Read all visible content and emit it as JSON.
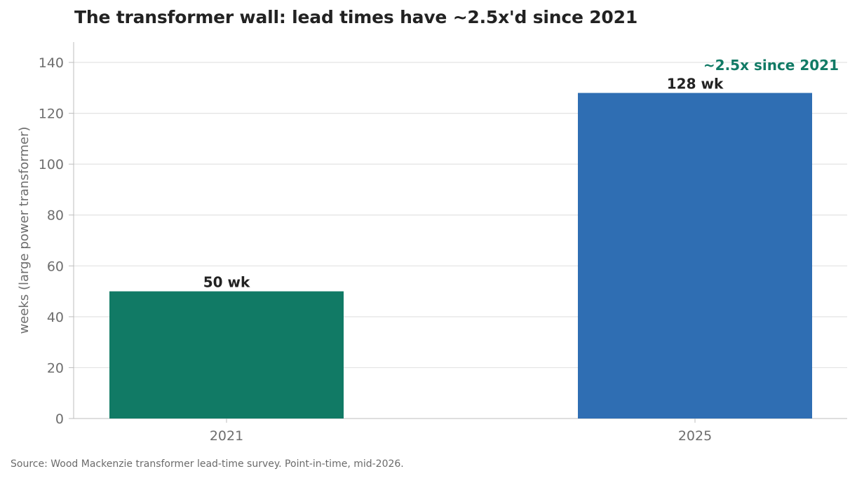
{
  "title": "The transformer wall: lead times have ~2.5x'd since 2021",
  "source": "Source: Wood Mackenzie transformer lead-time survey. Point-in-time, mid-2026.",
  "colors": {
    "bar_2021": "#117a65",
    "bar_2025": "#2f6eb3",
    "annotation": "#117a65",
    "grid": "#e3e3e3",
    "axis": "#bdbdbd"
  },
  "chart_data": {
    "type": "bar",
    "categories": [
      "2021",
      "2025"
    ],
    "values": [
      50,
      128
    ],
    "bar_labels": [
      "50 wk",
      "128 wk"
    ],
    "title": "The transformer wall: lead times have ~2.5x'd since 2021",
    "xlabel": "",
    "ylabel": "weeks (large power transformer)",
    "ylim": [
      0,
      148
    ],
    "yticks": [
      0,
      20,
      40,
      60,
      80,
      100,
      120,
      140
    ],
    "grid": true,
    "annotation": "~2.5x since 2021"
  }
}
